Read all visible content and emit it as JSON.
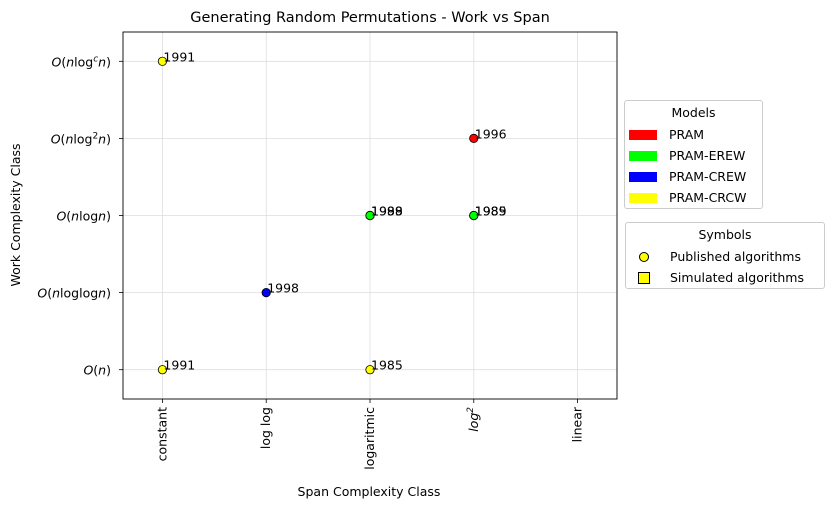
{
  "chart_data": {
    "type": "scatter",
    "title": "Generating Random Permutations - Work vs Span",
    "xlabel": "Span Complexity Class",
    "ylabel": "Work Complexity Class",
    "x_categories": [
      "constant",
      "log log",
      "logaritmic",
      "log2",
      "linear"
    ],
    "y_categories": [
      "O(n)",
      "O(nloglogn)",
      "O(nlogn)",
      "O(nlog2n)",
      "O(nlogcn)"
    ],
    "grid": true,
    "points": [
      {
        "x": "constant",
        "y": "O(nlogcn)",
        "label": "1991",
        "model": "PRAM-CRCW",
        "symbol": "published"
      },
      {
        "x": "constant",
        "y": "O(n)",
        "label": "1991",
        "model": "PRAM-CRCW",
        "symbol": "published"
      },
      {
        "x": "log log",
        "y": "O(nloglogn)",
        "label": "1998",
        "model": "PRAM-CREW",
        "symbol": "published"
      },
      {
        "x": "logaritmic",
        "y": "O(nlogn)",
        "label": "1989",
        "model": "PRAM-EREW",
        "symbol": "published"
      },
      {
        "x": "logaritmic",
        "y": "O(nlogn)",
        "label": "1998",
        "model": "PRAM-EREW",
        "symbol": "published"
      },
      {
        "x": "logaritmic",
        "y": "O(n)",
        "label": "1985",
        "model": "PRAM-CRCW",
        "symbol": "published"
      },
      {
        "x": "log2",
        "y": "O(nlog2n)",
        "label": "1996",
        "model": "PRAM",
        "symbol": "published"
      },
      {
        "x": "log2",
        "y": "O(nlogn)",
        "label": "1985",
        "model": "PRAM-EREW",
        "symbol": "published"
      },
      {
        "x": "log2",
        "y": "O(nlogn)",
        "label": "1989",
        "model": "PRAM-EREW",
        "symbol": "published"
      }
    ],
    "legend_models": {
      "title": "Models",
      "placement": "right",
      "items": [
        {
          "name": "PRAM",
          "color": "#ff0000"
        },
        {
          "name": "PRAM-EREW",
          "color": "#00ff00"
        },
        {
          "name": "PRAM-CREW",
          "color": "#0000ff"
        },
        {
          "name": "PRAM-CRCW",
          "color": "#ffff00"
        }
      ]
    },
    "legend_symbols": {
      "title": "Symbols",
      "placement": "right",
      "items": [
        {
          "name": "Published algorithms",
          "shape": "circle"
        },
        {
          "name": "Simulated algorithms",
          "shape": "square"
        }
      ]
    }
  }
}
